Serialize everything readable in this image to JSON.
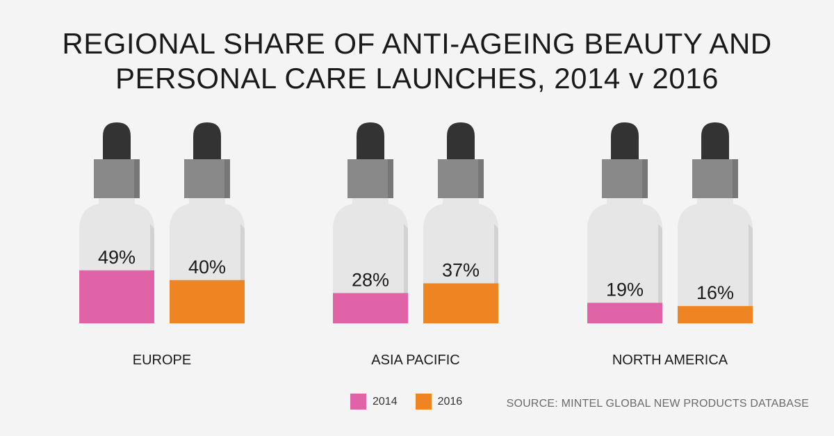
{
  "title_line1": "REGIONAL SHARE OF ANTI-AGEING BEAUTY AND",
  "title_line2": "PERSONAL CARE LAUNCHES, 2014 v 2016",
  "source": "SOURCE: MINTEL GLOBAL NEW PRODUCTS DATABASE",
  "colors": {
    "series_2014": "#e063a8",
    "series_2016": "#ef8423",
    "dropper_cap": "#333333",
    "dropper_collar": "#898989",
    "bottle": "#e6e6e6",
    "bottle_shade": "#d2d2d2"
  },
  "legend": [
    {
      "label": "2014",
      "color": "#e063a8"
    },
    {
      "label": "2016",
      "color": "#ef8423"
    }
  ],
  "chart_data": {
    "type": "bar",
    "title": "REGIONAL SHARE OF ANTI-AGEING BEAUTY AND PERSONAL CARE LAUNCHES, 2014 v 2016",
    "categories": [
      "EUROPE",
      "ASIA PACIFIC",
      "NORTH AMERICA"
    ],
    "series": [
      {
        "name": "2014",
        "values": [
          49,
          28,
          19
        ],
        "labels": [
          "49%",
          "28%",
          "19%"
        ]
      },
      {
        "name": "2016",
        "values": [
          40,
          37,
          16
        ],
        "labels": [
          "40%",
          "37%",
          "16%"
        ]
      }
    ],
    "ylim": [
      0,
      100
    ],
    "legend_position": "bottom"
  }
}
